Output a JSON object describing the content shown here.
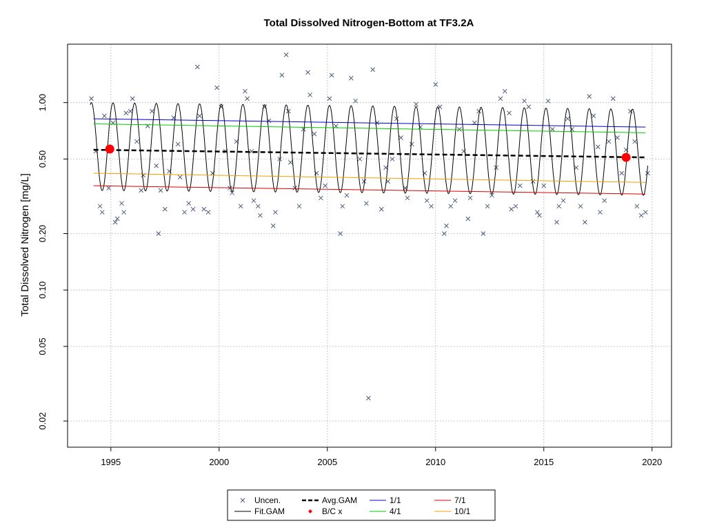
{
  "chart_data": {
    "type": "line",
    "title": "Total Dissolved Nitrogen-Bottom at TF3.2A",
    "xlabel": "",
    "ylabel": "Total Dissolved Nitrogen [mg/L]",
    "y_scale": "log",
    "xlim": [
      1993.0,
      2020.9
    ],
    "ylim": [
      0.0145,
      2.05
    ],
    "grid": true,
    "x_ticks": [
      1995,
      2000,
      2005,
      2010,
      2015,
      2020
    ],
    "x_tick_labels": [
      "1995",
      "2000",
      "2005",
      "2010",
      "2015",
      "2020"
    ],
    "y_ticks": [
      0.02,
      0.05,
      0.1,
      0.2,
      0.5,
      1.0
    ],
    "y_tick_labels": [
      "0.02",
      "0.05",
      "0.10",
      "0.20",
      "0.50",
      "1.00"
    ],
    "legend_position": "bottom-center",
    "legend": [
      {
        "label": "Uncen.",
        "kind": "x-marker",
        "color": "#4a5a7a"
      },
      {
        "label": "Avg.GAM",
        "kind": "dashed-line",
        "color": "#000000"
      },
      {
        "label": "1/1",
        "kind": "line",
        "color": "#0000cc"
      },
      {
        "label": "7/1",
        "kind": "line",
        "color": "#dd0000"
      },
      {
        "label": "Fit.GAM",
        "kind": "line",
        "color": "#000000"
      },
      {
        "label": "B/C x",
        "kind": "diamond",
        "color": "#ff0000"
      },
      {
        "label": "4/1",
        "kind": "line",
        "color": "#00cc00"
      },
      {
        "label": "10/1",
        "kind": "line",
        "color": "#f0a000"
      }
    ],
    "series": [
      {
        "name": "Fit.GAM",
        "kind": "seasonal",
        "x_range": [
          1994.05,
          2019.8
        ],
        "peak_first": 1.0,
        "peak_last": 0.92,
        "trough_first": 0.34,
        "trough_last": 0.32,
        "color": "#000000"
      },
      {
        "name": "Avg.GAM",
        "x": [
          1994.2,
          2019.7
        ],
        "y": [
          0.56,
          0.51
        ],
        "color": "#000000"
      },
      {
        "name": "1/1",
        "x": [
          1994.2,
          2019.7
        ],
        "y": [
          0.82,
          0.74
        ],
        "color": "#0000cc"
      },
      {
        "name": "4/1",
        "x": [
          1994.2,
          2019.7
        ],
        "y": [
          0.77,
          0.69
        ],
        "color": "#00cc00"
      },
      {
        "name": "7/1",
        "x": [
          1994.2,
          2019.7
        ],
        "y": [
          0.36,
          0.325
        ],
        "color": "#dd0000"
      },
      {
        "name": "10/1",
        "x": [
          1994.2,
          2019.7
        ],
        "y": [
          0.42,
          0.375
        ],
        "color": "#f0a000"
      },
      {
        "name": "B/C x",
        "kind": "points",
        "x": [
          1994.95,
          2018.8
        ],
        "y": [
          0.565,
          0.51
        ],
        "color": "#ff0000"
      }
    ],
    "observations": [
      [
        1994.1,
        1.05
      ],
      [
        1994.3,
        0.55
      ],
      [
        1994.5,
        0.28
      ],
      [
        1994.6,
        0.26
      ],
      [
        1994.7,
        0.85
      ],
      [
        1994.9,
        0.35
      ],
      [
        1995.1,
        0.78
      ],
      [
        1995.2,
        0.23
      ],
      [
        1995.3,
        0.24
      ],
      [
        1995.5,
        0.29
      ],
      [
        1995.6,
        0.26
      ],
      [
        1995.7,
        0.88
      ],
      [
        1995.9,
        0.9
      ],
      [
        1996.0,
        1.05
      ],
      [
        1996.2,
        0.62
      ],
      [
        1996.4,
        0.34
      ],
      [
        1996.5,
        0.41
      ],
      [
        1996.7,
        0.75
      ],
      [
        1996.9,
        0.9
      ],
      [
        1997.1,
        0.46
      ],
      [
        1997.2,
        0.2
      ],
      [
        1997.3,
        0.34
      ],
      [
        1997.5,
        0.27
      ],
      [
        1997.7,
        0.43
      ],
      [
        1997.9,
        0.83
      ],
      [
        1998.1,
        0.6
      ],
      [
        1998.2,
        0.4
      ],
      [
        1998.4,
        0.26
      ],
      [
        1998.6,
        0.29
      ],
      [
        1998.8,
        0.27
      ],
      [
        1999.0,
        1.55
      ],
      [
        1999.1,
        0.85
      ],
      [
        1999.3,
        0.27
      ],
      [
        1999.5,
        0.26
      ],
      [
        1999.7,
        0.42
      ],
      [
        1999.9,
        1.2
      ],
      [
        2000.1,
        0.95
      ],
      [
        2000.3,
        0.55
      ],
      [
        2000.5,
        0.35
      ],
      [
        2000.6,
        0.33
      ],
      [
        2000.8,
        0.62
      ],
      [
        2001.0,
        0.28
      ],
      [
        2001.2,
        1.15
      ],
      [
        2001.3,
        1.05
      ],
      [
        2001.5,
        0.55
      ],
      [
        2001.6,
        0.3
      ],
      [
        2001.8,
        0.28
      ],
      [
        2001.9,
        0.25
      ],
      [
        2002.1,
        0.95
      ],
      [
        2002.3,
        0.8
      ],
      [
        2002.5,
        0.22
      ],
      [
        2002.6,
        0.26
      ],
      [
        2002.8,
        0.5
      ],
      [
        2002.9,
        1.4
      ],
      [
        2003.1,
        1.8
      ],
      [
        2003.2,
        0.9
      ],
      [
        2003.3,
        0.48
      ],
      [
        2003.5,
        0.35
      ],
      [
        2003.7,
        0.28
      ],
      [
        2003.9,
        0.72
      ],
      [
        2004.1,
        1.45
      ],
      [
        2004.2,
        1.1
      ],
      [
        2004.4,
        0.68
      ],
      [
        2004.5,
        0.42
      ],
      [
        2004.7,
        0.31
      ],
      [
        2004.9,
        0.36
      ],
      [
        2005.1,
        1.05
      ],
      [
        2005.2,
        1.4
      ],
      [
        2005.4,
        0.75
      ],
      [
        2005.6,
        0.2
      ],
      [
        2005.7,
        0.28
      ],
      [
        2005.9,
        0.32
      ],
      [
        2006.1,
        1.35
      ],
      [
        2006.3,
        1.02
      ],
      [
        2006.5,
        0.5
      ],
      [
        2006.7,
        0.38
      ],
      [
        2006.8,
        0.29
      ],
      [
        2006.9,
        0.0265
      ],
      [
        2007.1,
        1.5
      ],
      [
        2007.3,
        0.78
      ],
      [
        2007.5,
        0.27
      ],
      [
        2007.7,
        0.45
      ],
      [
        2007.8,
        0.38
      ],
      [
        2008.0,
        0.5
      ],
      [
        2008.2,
        0.82
      ],
      [
        2008.4,
        0.65
      ],
      [
        2008.6,
        0.35
      ],
      [
        2008.7,
        0.31
      ],
      [
        2008.9,
        0.6
      ],
      [
        2009.1,
        0.98
      ],
      [
        2009.3,
        0.74
      ],
      [
        2009.5,
        0.42
      ],
      [
        2009.6,
        0.3
      ],
      [
        2009.8,
        0.28
      ],
      [
        2010.0,
        1.25
      ],
      [
        2010.2,
        0.95
      ],
      [
        2010.4,
        0.2
      ],
      [
        2010.5,
        0.22
      ],
      [
        2010.7,
        0.28
      ],
      [
        2010.9,
        0.3
      ],
      [
        2011.1,
        0.72
      ],
      [
        2011.3,
        0.55
      ],
      [
        2011.5,
        0.24
      ],
      [
        2011.6,
        0.31
      ],
      [
        2011.8,
        0.78
      ],
      [
        2012.0,
        0.9
      ],
      [
        2012.2,
        0.2
      ],
      [
        2012.4,
        0.28
      ],
      [
        2012.6,
        0.32
      ],
      [
        2012.8,
        0.45
      ],
      [
        2013.0,
        1.05
      ],
      [
        2013.2,
        1.15
      ],
      [
        2013.4,
        0.88
      ],
      [
        2013.5,
        0.27
      ],
      [
        2013.7,
        0.28
      ],
      [
        2013.9,
        0.36
      ],
      [
        2014.1,
        1.02
      ],
      [
        2014.3,
        0.95
      ],
      [
        2014.5,
        0.38
      ],
      [
        2014.7,
        0.26
      ],
      [
        2014.8,
        0.25
      ],
      [
        2015.0,
        0.36
      ],
      [
        2015.2,
        1.02
      ],
      [
        2015.4,
        0.72
      ],
      [
        2015.6,
        0.23
      ],
      [
        2015.7,
        0.28
      ],
      [
        2015.9,
        0.3
      ],
      [
        2016.1,
        0.82
      ],
      [
        2016.3,
        0.72
      ],
      [
        2016.5,
        0.45
      ],
      [
        2016.7,
        0.28
      ],
      [
        2016.9,
        0.23
      ],
      [
        2017.1,
        1.08
      ],
      [
        2017.3,
        0.85
      ],
      [
        2017.5,
        0.58
      ],
      [
        2017.6,
        0.26
      ],
      [
        2017.8,
        0.3
      ],
      [
        2018.0,
        0.62
      ],
      [
        2018.2,
        1.05
      ],
      [
        2018.4,
        0.65
      ],
      [
        2018.6,
        0.42
      ],
      [
        2018.8,
        0.56
      ],
      [
        2019.0,
        0.9
      ],
      [
        2019.2,
        0.62
      ],
      [
        2019.3,
        0.28
      ],
      [
        2019.5,
        0.25
      ],
      [
        2019.7,
        0.26
      ],
      [
        2019.8,
        0.42
      ]
    ]
  }
}
